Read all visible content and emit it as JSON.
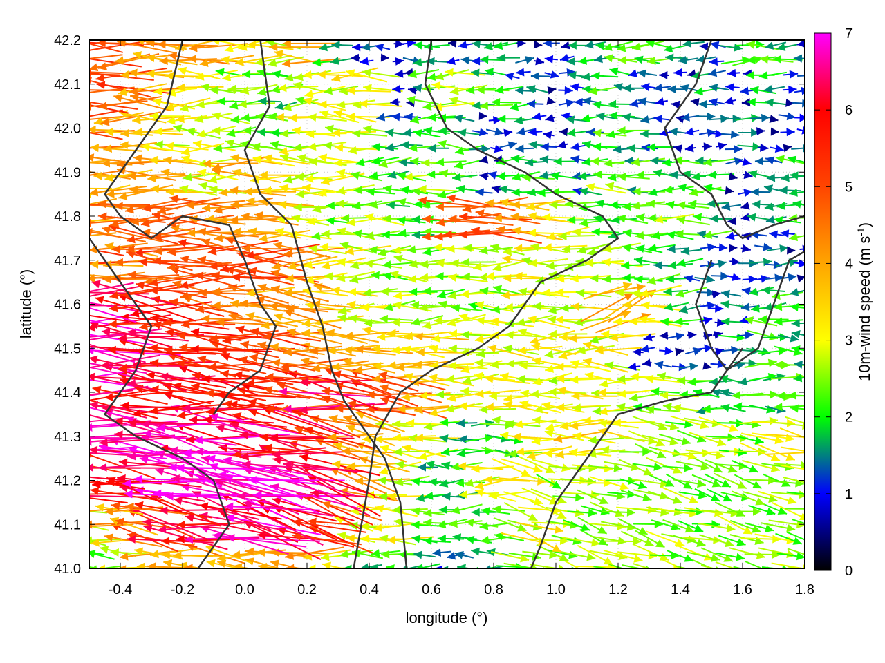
{
  "chart_data": {
    "type": "vector-field",
    "xlabel": "longitude (°)",
    "ylabel": "latitude (°)",
    "xlim": [
      -0.5,
      1.8
    ],
    "ylim": [
      41.0,
      42.2
    ],
    "xticks": [
      "-0.4",
      "-0.2",
      "0.0",
      "0.2",
      "0.4",
      "0.6",
      "0.8",
      "1.0",
      "1.2",
      "1.4",
      "1.6",
      "1.8"
    ],
    "yticks": [
      "41.0",
      "41.1",
      "41.2",
      "41.3",
      "41.4",
      "41.5",
      "41.6",
      "41.7",
      "41.8",
      "41.9",
      "42.0",
      "42.1",
      "42.2"
    ],
    "grid": true,
    "colorbar": {
      "label_main": "10m-wind speed (m s",
      "label_sup": "-1",
      "label_end": ")",
      "range": [
        0,
        7
      ],
      "ticks": [
        "0",
        "1",
        "2",
        "3",
        "4",
        "5",
        "6",
        "7"
      ],
      "palette": [
        [
          0,
          "#000000"
        ],
        [
          1,
          "#0000ff"
        ],
        [
          1.5,
          "#008080"
        ],
        [
          2,
          "#00ff00"
        ],
        [
          3,
          "#ffff00"
        ],
        [
          4,
          "#ffa500"
        ],
        [
          5,
          "#ff4500"
        ],
        [
          6,
          "#ff0000"
        ],
        [
          7,
          "#ff00ff"
        ]
      ]
    },
    "grid_lon": [
      -0.5,
      -0.4,
      -0.3,
      -0.2,
      -0.1,
      0.0,
      0.1,
      0.2,
      0.3,
      0.4,
      0.5,
      0.6,
      0.7,
      0.8,
      0.9,
      1.0,
      1.1,
      1.2,
      1.3,
      1.4,
      1.5,
      1.6,
      1.7,
      1.8
    ],
    "grid_lat": [
      42.2,
      42.1,
      42.0,
      41.9,
      41.8,
      41.7,
      41.6,
      41.5,
      41.4,
      41.3,
      41.2,
      41.1,
      41.0
    ],
    "speed_ms": [
      [
        5,
        5,
        4,
        4,
        4,
        3,
        3,
        4,
        2,
        1,
        1,
        1.5,
        1,
        1.5,
        1,
        1,
        2,
        2,
        2,
        1.5,
        1,
        2,
        2,
        1
      ],
      [
        5,
        5,
        4,
        3.5,
        3,
        2.5,
        2,
        2.5,
        3,
        3,
        1,
        2,
        3,
        2,
        1.5,
        1,
        1.5,
        2,
        1,
        1,
        1.5,
        1,
        2,
        1
      ],
      [
        5,
        4,
        3.5,
        3,
        3,
        2.5,
        2,
        3,
        3,
        3,
        1.5,
        2,
        2,
        1,
        1.5,
        1,
        1.5,
        2,
        1.5,
        1,
        1,
        1.5,
        1,
        1
      ],
      [
        4,
        4,
        4,
        3.5,
        3,
        4,
        3.5,
        3,
        3,
        2.5,
        2,
        2.5,
        2,
        1,
        2,
        2,
        1.5,
        2.5,
        2,
        2,
        2,
        1,
        1.5,
        2
      ],
      [
        4,
        4.5,
        5,
        5,
        4.5,
        4,
        4,
        3,
        2.5,
        2.5,
        2,
        2,
        5,
        5,
        4,
        3,
        2.5,
        2,
        2,
        2.5,
        2,
        1,
        1.5,
        2
      ],
      [
        5,
        4,
        5,
        5,
        5,
        5,
        5,
        4,
        3,
        3,
        2.5,
        2.5,
        2.5,
        2.5,
        3,
        3,
        3,
        2.5,
        2,
        1.5,
        1,
        1,
        1.5,
        1
      ],
      [
        6.5,
        6,
        5.5,
        5.5,
        5,
        4.5,
        4,
        4,
        3.5,
        3,
        2.5,
        2.5,
        2.5,
        2.5,
        3,
        3,
        3,
        4,
        3,
        2,
        1,
        1.5,
        2,
        2
      ],
      [
        6.5,
        6.5,
        6,
        6,
        5.5,
        5.5,
        5,
        4.5,
        4,
        4,
        3.5,
        3.5,
        3,
        3,
        3,
        3,
        3,
        3,
        1,
        1,
        1,
        1.5,
        2,
        2
      ],
      [
        6.5,
        6,
        6,
        6,
        6,
        5.5,
        5.5,
        5,
        6.5,
        5,
        4.5,
        3.5,
        3,
        3,
        3,
        3,
        3,
        3,
        2.5,
        2.5,
        2,
        2,
        2,
        2
      ],
      [
        6.5,
        6.5,
        6.5,
        6.5,
        6.5,
        6.5,
        6,
        6,
        5,
        4,
        3,
        3,
        2,
        2,
        3,
        3,
        3.5,
        3,
        2.5,
        2.5,
        2.5,
        2.5,
        3,
        3
      ],
      [
        5.5,
        6,
        6,
        7,
        7,
        7,
        7,
        6.5,
        6,
        4,
        3,
        2,
        2,
        3,
        3,
        2.5,
        2.5,
        2.5,
        2.5,
        2.5,
        2.5,
        2.5,
        2.5,
        2.5
      ],
      [
        3,
        4,
        5,
        6,
        6,
        6.5,
        6.5,
        6,
        5,
        3,
        3,
        2,
        2,
        2,
        3,
        2.5,
        2.5,
        2.5,
        2.5,
        2.5,
        2.5,
        2.5,
        2.5,
        2.5
      ],
      [
        2.5,
        3,
        4,
        4,
        4,
        4,
        4,
        4,
        3,
        2,
        2,
        1.5,
        1.5,
        2,
        2.5,
        2.5,
        2.5,
        2.5,
        2.5,
        2.5,
        2.5,
        2.5,
        2.5,
        2.5
      ]
    ],
    "direction_deg": [
      [
        180,
        180,
        180,
        180,
        180,
        180,
        180,
        180,
        180,
        180,
        0,
        180,
        180,
        180,
        0,
        180,
        180,
        180,
        180,
        180,
        180,
        0,
        180,
        180
      ],
      [
        180,
        180,
        180,
        180,
        180,
        180,
        180,
        180,
        180,
        180,
        180,
        180,
        180,
        180,
        180,
        0,
        180,
        180,
        180,
        180,
        180,
        180,
        180,
        0
      ],
      [
        180,
        180,
        180,
        180,
        180,
        180,
        180,
        180,
        180,
        180,
        180,
        180,
        180,
        0,
        180,
        180,
        180,
        180,
        180,
        180,
        0,
        0,
        0,
        0
      ],
      [
        180,
        180,
        180,
        180,
        180,
        180,
        180,
        180,
        180,
        180,
        180,
        180,
        180,
        180,
        180,
        180,
        180,
        180,
        180,
        180,
        180,
        0,
        180,
        180
      ],
      [
        180,
        180,
        180,
        180,
        180,
        180,
        180,
        180,
        180,
        180,
        180,
        180,
        180,
        180,
        180,
        180,
        180,
        180,
        180,
        180,
        180,
        180,
        180,
        180
      ],
      [
        180,
        178,
        178,
        178,
        178,
        178,
        178,
        178,
        180,
        180,
        180,
        180,
        180,
        180,
        180,
        180,
        180,
        180,
        180,
        180,
        0,
        0,
        0,
        0
      ],
      [
        176,
        176,
        176,
        176,
        176,
        176,
        176,
        176,
        178,
        180,
        180,
        180,
        180,
        180,
        180,
        180,
        180,
        20,
        180,
        180,
        0,
        180,
        180,
        180
      ],
      [
        176,
        176,
        176,
        176,
        176,
        176,
        176,
        176,
        176,
        178,
        180,
        180,
        180,
        180,
        180,
        180,
        180,
        180,
        180,
        0,
        0,
        0,
        0,
        180
      ],
      [
        175,
        175,
        175,
        175,
        175,
        175,
        175,
        175,
        170,
        172,
        175,
        180,
        180,
        180,
        180,
        180,
        180,
        180,
        180,
        180,
        180,
        180,
        0,
        180
      ],
      [
        172,
        172,
        172,
        172,
        172,
        172,
        172,
        170,
        168,
        170,
        175,
        180,
        180,
        0,
        180,
        180,
        180,
        180,
        350,
        350,
        350,
        350,
        350,
        350
      ],
      [
        175,
        172,
        170,
        168,
        168,
        168,
        168,
        165,
        165,
        170,
        180,
        180,
        180,
        180,
        345,
        345,
        345,
        345,
        345,
        345,
        345,
        345,
        345,
        345
      ],
      [
        178,
        175,
        172,
        170,
        170,
        168,
        168,
        165,
        165,
        175,
        180,
        180,
        180,
        180,
        345,
        345,
        345,
        345,
        345,
        345,
        345,
        345,
        345,
        345
      ],
      [
        180,
        178,
        178,
        175,
        175,
        175,
        175,
        175,
        175,
        180,
        180,
        180,
        180,
        180,
        345,
        345,
        345,
        345,
        345,
        345,
        345,
        345,
        345,
        345
      ]
    ],
    "terrain_contours": [
      [
        [
          0.05,
          42.2
        ],
        [
          0.08,
          42.05
        ],
        [
          0.0,
          41.95
        ],
        [
          0.05,
          41.85
        ],
        [
          0.15,
          41.78
        ],
        [
          0.2,
          41.65
        ],
        [
          0.25,
          41.55
        ],
        [
          0.28,
          41.45
        ],
        [
          0.32,
          41.38
        ],
        [
          0.38,
          41.32
        ],
        [
          0.45,
          41.25
        ],
        [
          0.5,
          41.15
        ],
        [
          0.52,
          41.0
        ]
      ],
      [
        [
          0.6,
          42.2
        ],
        [
          0.58,
          42.1
        ],
        [
          0.65,
          42.0
        ],
        [
          0.75,
          41.95
        ],
        [
          0.9,
          41.9
        ],
        [
          1.0,
          41.85
        ],
        [
          1.15,
          41.8
        ],
        [
          1.2,
          41.75
        ],
        [
          1.1,
          41.7
        ],
        [
          0.95,
          41.65
        ],
        [
          0.85,
          41.55
        ],
        [
          0.75,
          41.5
        ],
        [
          0.6,
          41.45
        ],
        [
          0.5,
          41.4
        ],
        [
          0.42,
          41.3
        ],
        [
          0.4,
          41.2
        ],
        [
          0.35,
          41.0
        ]
      ],
      [
        [
          1.6,
          41.5
        ],
        [
          1.5,
          41.4
        ],
        [
          1.35,
          41.38
        ],
        [
          1.2,
          41.35
        ],
        [
          1.1,
          41.25
        ],
        [
          1.0,
          41.15
        ],
        [
          0.95,
          41.05
        ],
        [
          0.92,
          41.0
        ]
      ],
      [
        [
          -0.5,
          41.75
        ],
        [
          -0.4,
          41.65
        ],
        [
          -0.3,
          41.55
        ],
        [
          -0.35,
          41.45
        ],
        [
          -0.45,
          41.35
        ],
        [
          -0.35,
          41.3
        ],
        [
          -0.2,
          41.25
        ],
        [
          -0.1,
          41.2
        ],
        [
          -0.05,
          41.1
        ],
        [
          -0.15,
          41.0
        ]
      ],
      [
        [
          -0.2,
          42.2
        ],
        [
          -0.25,
          42.05
        ],
        [
          -0.35,
          41.95
        ],
        [
          -0.45,
          41.85
        ],
        [
          -0.4,
          41.8
        ],
        [
          -0.3,
          41.75
        ],
        [
          -0.2,
          41.8
        ],
        [
          -0.05,
          41.78
        ],
        [
          0.0,
          41.7
        ],
        [
          0.05,
          41.6
        ],
        [
          0.1,
          41.55
        ],
        [
          0.05,
          41.45
        ],
        [
          -0.05,
          41.4
        ],
        [
          -0.1,
          41.35
        ]
      ],
      [
        [
          1.5,
          42.2
        ],
        [
          1.45,
          42.1
        ],
        [
          1.35,
          42.0
        ],
        [
          1.4,
          41.9
        ],
        [
          1.5,
          41.85
        ],
        [
          1.55,
          41.78
        ],
        [
          1.6,
          41.75
        ],
        [
          1.7,
          41.78
        ],
        [
          1.8,
          41.8
        ]
      ],
      [
        [
          1.5,
          41.7
        ],
        [
          1.45,
          41.6
        ],
        [
          1.5,
          41.5
        ],
        [
          1.55,
          41.45
        ],
        [
          1.65,
          41.5
        ],
        [
          1.7,
          41.6
        ],
        [
          1.75,
          41.7
        ],
        [
          1.8,
          41.72
        ]
      ]
    ]
  }
}
